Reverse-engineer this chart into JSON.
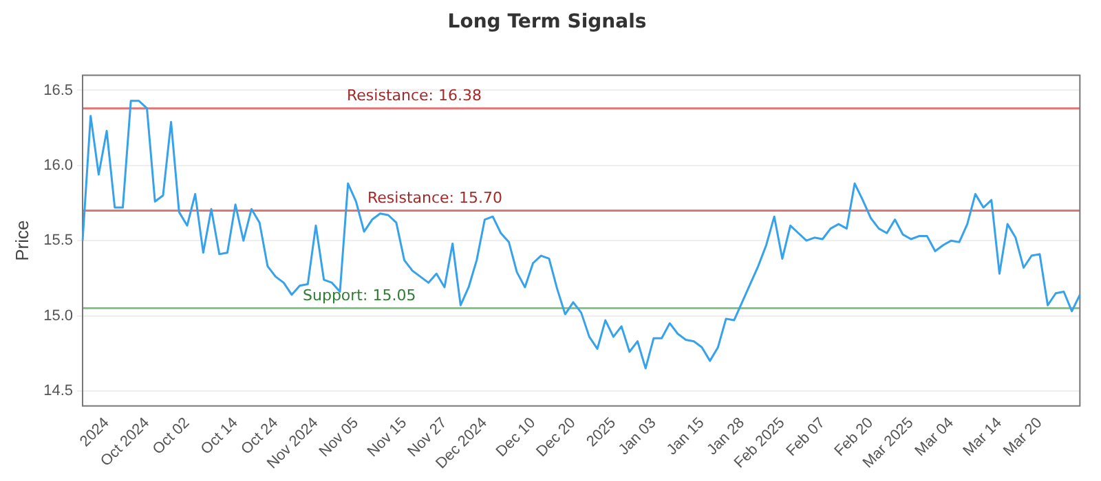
{
  "chart_data": {
    "type": "line",
    "title": "Long Term Signals",
    "ylabel": "Price",
    "categories": [
      null,
      null,
      null,
      "2024",
      null,
      null,
      null,
      null,
      "Oct 2024",
      null,
      null,
      null,
      null,
      "Oct 02",
      null,
      null,
      null,
      null,
      null,
      "Oct 14",
      null,
      null,
      null,
      null,
      "Oct 24",
      null,
      null,
      null,
      null,
      "Nov 2024",
      null,
      null,
      null,
      null,
      "Nov 05",
      null,
      null,
      null,
      null,
      null,
      "Nov 15",
      null,
      null,
      null,
      null,
      "Nov 27",
      null,
      null,
      null,
      null,
      "Dec 2024",
      null,
      null,
      null,
      null,
      null,
      "Dec 10",
      null,
      null,
      null,
      null,
      "Dec 20",
      null,
      null,
      null,
      null,
      "2025",
      null,
      null,
      null,
      null,
      "Jan 03",
      null,
      null,
      null,
      null,
      null,
      "Jan 15",
      null,
      null,
      null,
      null,
      "Jan 28",
      null,
      null,
      null,
      null,
      "Feb 2025",
      null,
      null,
      null,
      null,
      "Feb 07",
      null,
      null,
      null,
      null,
      null,
      "Feb 20",
      null,
      null,
      null,
      null,
      "Mar 2025",
      null,
      null,
      null,
      null,
      "Mar 04",
      null,
      null,
      null,
      null,
      null,
      "Mar 14",
      null,
      null,
      null,
      null,
      "Mar 20",
      null,
      null,
      null,
      null,
      null
    ],
    "series": [
      {
        "color": "#36a2eb",
        "values": [
          15.5,
          16.33,
          15.94,
          16.23,
          15.72,
          15.72,
          16.43,
          16.43,
          16.38,
          15.76,
          15.8,
          16.29,
          15.69,
          15.6,
          15.81,
          15.42,
          15.71,
          15.41,
          15.42,
          15.74,
          15.5,
          15.71,
          15.62,
          15.33,
          15.26,
          15.22,
          15.14,
          15.2,
          15.21,
          15.6,
          15.24,
          15.22,
          15.16,
          15.88,
          15.76,
          15.56,
          15.64,
          15.68,
          15.67,
          15.62,
          15.37,
          15.3,
          15.26,
          15.22,
          15.28,
          15.19,
          15.48,
          15.07,
          15.19,
          15.37,
          15.64,
          15.66,
          15.55,
          15.49,
          15.29,
          15.19,
          15.35,
          15.4,
          15.38,
          15.18,
          15.01,
          15.09,
          15.02,
          14.86,
          14.78,
          14.97,
          14.86,
          14.93,
          14.76,
          14.83,
          14.65,
          14.85,
          14.85,
          14.95,
          14.88,
          14.84,
          14.83,
          14.79,
          14.7,
          14.79,
          14.98,
          14.97,
          15.09,
          15.21,
          15.33,
          15.47,
          15.66,
          15.38,
          15.6,
          15.55,
          15.5,
          15.52,
          15.51,
          15.58,
          15.61,
          15.58,
          15.88,
          15.77,
          15.65,
          15.58,
          15.55,
          15.64,
          15.54,
          15.51,
          15.53,
          15.53,
          15.43,
          15.47,
          15.5,
          15.49,
          15.61,
          15.81,
          15.72,
          15.77,
          15.28,
          15.61,
          15.52,
          15.32,
          15.4,
          15.41,
          15.07,
          15.15,
          15.16,
          15.03,
          15.14
        ]
      }
    ],
    "ylim": [
      14.4,
      16.6
    ],
    "yticks": [
      14.5,
      {
        "value": 15,
        "label": "15.0"
      },
      15.5,
      {
        "value": 16,
        "label": "16.0"
      },
      16.5
    ],
    "ref_lines": [
      {
        "axis": "y",
        "value": 16.38,
        "label": "Resistance: 16.38",
        "color": "#e57373"
      },
      {
        "axis": "y",
        "value": 15.7,
        "label": "Resistance: 15.70",
        "color": "#e57373"
      },
      {
        "axis": "y",
        "value": 15.05,
        "label": "Support: 15.05",
        "color": "#81c784"
      }
    ],
    "grid": "y",
    "legend": false,
    "marker": "none",
    "line_style": "solid"
  }
}
